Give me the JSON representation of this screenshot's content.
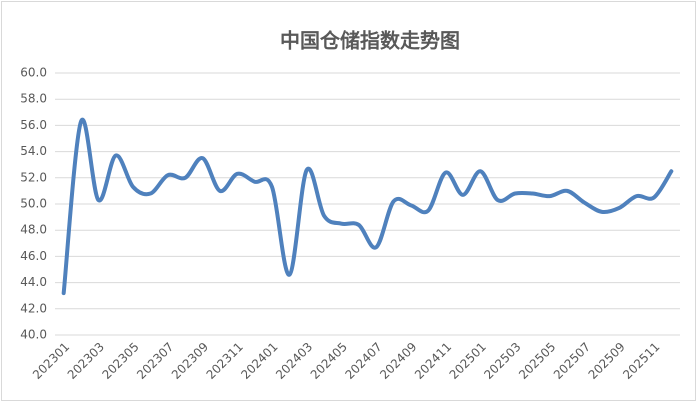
{
  "chart_data": {
    "type": "line",
    "title": "中国仓储指数走势图",
    "categories": [
      "202301",
      null,
      "202303",
      null,
      "202305",
      null,
      "202307",
      null,
      "202309",
      null,
      "202311",
      null,
      "202401",
      null,
      "202403",
      null,
      "202405",
      null,
      "202407",
      null,
      "202409",
      null,
      "202411",
      null,
      "202501",
      null,
      "202503",
      null,
      "202505",
      null,
      "202507",
      null,
      "202509",
      null,
      "202511",
      null
    ],
    "values": [
      43.2,
      56.3,
      50.3,
      53.7,
      51.3,
      50.8,
      52.2,
      52.0,
      53.5,
      51.0,
      52.3,
      51.7,
      51.3,
      44.6,
      52.6,
      49.1,
      48.5,
      48.4,
      46.7,
      50.2,
      49.9,
      49.5,
      52.4,
      50.7,
      52.5,
      50.3,
      50.8,
      50.8,
      50.6,
      51.0,
      50.1,
      49.4,
      49.7,
      50.6,
      50.5,
      52.5
    ],
    "color": "#4f81bd",
    "ylim": [
      40,
      60
    ],
    "yticks": [
      {
        "value": 40,
        "label": "40.0"
      },
      {
        "value": 42,
        "label": "42.0"
      },
      {
        "value": 44,
        "label": "44.0"
      },
      {
        "value": 46,
        "label": "46.0"
      },
      {
        "value": 48,
        "label": "48.0"
      },
      {
        "value": 50,
        "label": "50.0"
      },
      {
        "value": 52,
        "label": "52.0"
      },
      {
        "value": 54,
        "label": "54.0"
      },
      {
        "value": 56,
        "label": "56.0"
      },
      {
        "value": 58,
        "label": "58.0"
      },
      {
        "value": 60,
        "label": "60.0"
      }
    ],
    "grid": true
  }
}
